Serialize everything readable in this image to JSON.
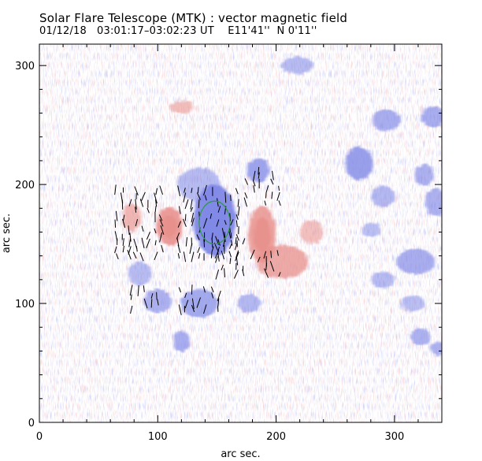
{
  "header": {
    "title": "Solar Flare Telescope (MTK) : vector magnetic field",
    "obs_date": "01/12/18",
    "obs_time": "03:01:17–03:02:23 UT",
    "position": "E11'41''  N 0'11''"
  },
  "chart_data": {
    "type": "heatmap",
    "description_free": true,
    "title": "Solar Flare Telescope (MTK) : vector magnetic field",
    "xlabel": "arc sec.",
    "ylabel": "arc sec.",
    "xlim": [
      0,
      340
    ],
    "ylim": [
      0,
      318
    ],
    "xticks": [
      0,
      100,
      200,
      300
    ],
    "yticks": [
      0,
      100,
      200,
      300
    ],
    "colormap": {
      "positive": "#e8908c",
      "negative": "#7f88e6",
      "background": "#ffffff"
    },
    "polarity_regions": [
      {
        "polarity": "negative",
        "cx": 148,
        "cy": 170,
        "rx": 18,
        "ry": 30,
        "strength": 1.0
      },
      {
        "polarity": "negative",
        "cx": 185,
        "cy": 212,
        "rx": 10,
        "ry": 10,
        "strength": 0.7
      },
      {
        "polarity": "positive",
        "cx": 110,
        "cy": 165,
        "rx": 11,
        "ry": 16,
        "strength": 0.9
      },
      {
        "polarity": "positive",
        "cx": 188,
        "cy": 158,
        "rx": 12,
        "ry": 24,
        "strength": 0.8
      },
      {
        "polarity": "positive",
        "cx": 205,
        "cy": 135,
        "rx": 22,
        "ry": 14,
        "strength": 0.7
      },
      {
        "polarity": "positive",
        "cx": 78,
        "cy": 172,
        "rx": 8,
        "ry": 12,
        "strength": 0.5
      },
      {
        "polarity": "positive",
        "cx": 230,
        "cy": 160,
        "rx": 10,
        "ry": 10,
        "strength": 0.35
      },
      {
        "polarity": "positive",
        "cx": 120,
        "cy": 265,
        "rx": 10,
        "ry": 5,
        "strength": 0.4
      },
      {
        "polarity": "negative",
        "cx": 135,
        "cy": 200,
        "rx": 18,
        "ry": 14,
        "strength": 0.35
      },
      {
        "polarity": "negative",
        "cx": 85,
        "cy": 125,
        "rx": 10,
        "ry": 10,
        "strength": 0.35
      },
      {
        "polarity": "negative",
        "cx": 100,
        "cy": 102,
        "rx": 12,
        "ry": 10,
        "strength": 0.5
      },
      {
        "polarity": "negative",
        "cx": 135,
        "cy": 100,
        "rx": 16,
        "ry": 12,
        "strength": 0.6
      },
      {
        "polarity": "negative",
        "cx": 120,
        "cy": 68,
        "rx": 7,
        "ry": 9,
        "strength": 0.55
      },
      {
        "polarity": "negative",
        "cx": 177,
        "cy": 100,
        "rx": 10,
        "ry": 8,
        "strength": 0.4
      },
      {
        "polarity": "negative",
        "cx": 270,
        "cy": 218,
        "rx": 12,
        "ry": 14,
        "strength": 0.75
      },
      {
        "polarity": "negative",
        "cx": 293,
        "cy": 254,
        "rx": 12,
        "ry": 9,
        "strength": 0.55
      },
      {
        "polarity": "negative",
        "cx": 333,
        "cy": 257,
        "rx": 10,
        "ry": 9,
        "strength": 0.55
      },
      {
        "polarity": "negative",
        "cx": 325,
        "cy": 208,
        "rx": 8,
        "ry": 9,
        "strength": 0.5
      },
      {
        "polarity": "negative",
        "cx": 335,
        "cy": 185,
        "rx": 9,
        "ry": 12,
        "strength": 0.5
      },
      {
        "polarity": "negative",
        "cx": 290,
        "cy": 190,
        "rx": 10,
        "ry": 9,
        "strength": 0.4
      },
      {
        "polarity": "negative",
        "cx": 318,
        "cy": 135,
        "rx": 16,
        "ry": 11,
        "strength": 0.55
      },
      {
        "polarity": "negative",
        "cx": 290,
        "cy": 120,
        "rx": 10,
        "ry": 7,
        "strength": 0.35
      },
      {
        "polarity": "negative",
        "cx": 315,
        "cy": 100,
        "rx": 10,
        "ry": 7,
        "strength": 0.3
      },
      {
        "polarity": "negative",
        "cx": 322,
        "cy": 72,
        "rx": 9,
        "ry": 7,
        "strength": 0.5
      },
      {
        "polarity": "negative",
        "cx": 337,
        "cy": 62,
        "rx": 7,
        "ry": 6,
        "strength": 0.5
      },
      {
        "polarity": "negative",
        "cx": 218,
        "cy": 300,
        "rx": 14,
        "ry": 7,
        "strength": 0.35
      },
      {
        "polarity": "negative",
        "cx": 280,
        "cy": 162,
        "rx": 8,
        "ry": 6,
        "strength": 0.3
      }
    ],
    "transverse_field_regions": [
      {
        "x0": 65,
        "x1": 105,
        "y0": 140,
        "y1": 195
      },
      {
        "x0": 118,
        "x1": 172,
        "y0": 140,
        "y1": 195
      },
      {
        "x0": 150,
        "x1": 175,
        "y0": 125,
        "y1": 160
      },
      {
        "x0": 175,
        "x1": 205,
        "y0": 185,
        "y1": 215
      },
      {
        "x0": 180,
        "x1": 205,
        "y0": 125,
        "y1": 145
      },
      {
        "x0": 78,
        "x1": 100,
        "y0": 95,
        "y1": 115
      },
      {
        "x0": 118,
        "x1": 152,
        "y0": 95,
        "y1": 115
      }
    ],
    "polarity_inversion_contour": {
      "cx": 148,
      "cy": 168,
      "rx": 13,
      "ry": 18,
      "color": "#2a9c3a"
    }
  }
}
